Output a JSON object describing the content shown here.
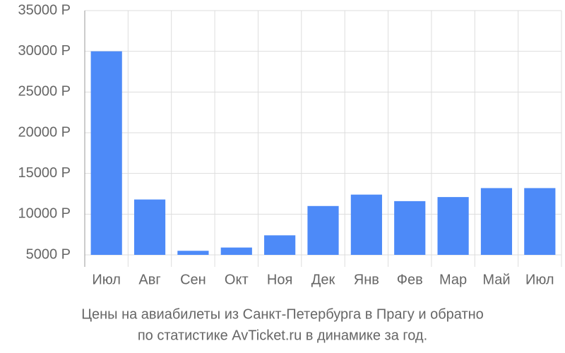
{
  "chart_data": {
    "type": "bar",
    "title": [
      "Цены на авиабилеты из Санкт-Петербурга в Прагу и обратно",
      "по статистике AvTicket.ru в динамике за год."
    ],
    "categories": [
      "Июл",
      "Авг",
      "Сен",
      "Окт",
      "Ноя",
      "Дек",
      "Янв",
      "Фев",
      "Мар",
      "Май",
      "Июл"
    ],
    "values": [
      30000,
      11800,
      5500,
      5900,
      7400,
      11000,
      12400,
      11600,
      12100,
      13200,
      13200
    ],
    "color": "#4d8af8",
    "ylim": [
      5000,
      35000
    ],
    "yticks": [
      {
        "value": 5000,
        "label": "5000 Р"
      },
      {
        "value": 10000,
        "label": "10000 Р"
      },
      {
        "value": 15000,
        "label": "15000 Р"
      },
      {
        "value": 20000,
        "label": "20000 Р"
      },
      {
        "value": 25000,
        "label": "25000 Р"
      },
      {
        "value": 30000,
        "label": "30000 Р"
      },
      {
        "value": 35000,
        "label": "35000 Р"
      }
    ],
    "grid": true
  }
}
